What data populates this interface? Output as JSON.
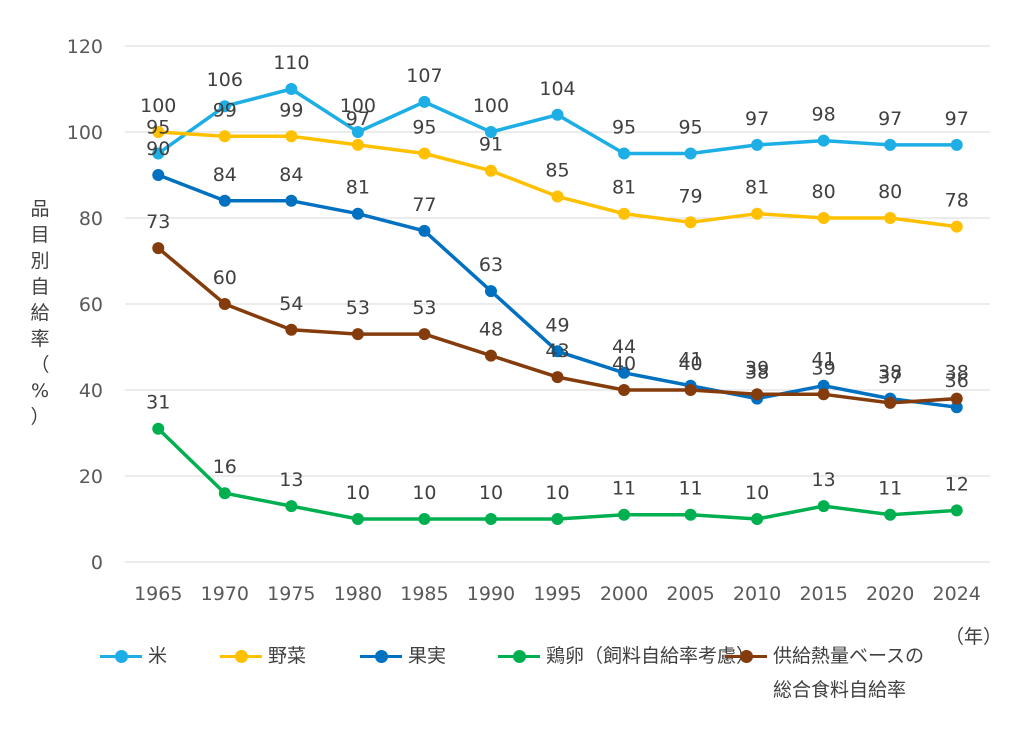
{
  "chart_data": {
    "type": "line",
    "categories": [
      "1965",
      "1970",
      "1975",
      "1980",
      "1985",
      "1990",
      "1995",
      "2000",
      "2005",
      "2010",
      "2015",
      "2020",
      "2024"
    ],
    "series": [
      {
        "name": "米",
        "color": "#1CAEE4",
        "values": [
          95,
          106,
          110,
          100,
          107,
          100,
          104,
          95,
          95,
          97,
          98,
          97,
          97
        ]
      },
      {
        "name": "野菜",
        "color": "#FFC000",
        "values": [
          100,
          99,
          99,
          97,
          95,
          91,
          85,
          81,
          79,
          81,
          80,
          80,
          78
        ]
      },
      {
        "name": "果実",
        "color": "#0070C0",
        "values": [
          90,
          84,
          84,
          81,
          77,
          63,
          49,
          44,
          41,
          38,
          41,
          38,
          36
        ]
      },
      {
        "name": "鶏卵（飼料自給率考慮）",
        "color": "#00B050",
        "values": [
          31,
          16,
          13,
          10,
          10,
          10,
          10,
          11,
          11,
          10,
          13,
          11,
          12
        ]
      },
      {
        "name": "供給熱量ベースの総合食料自給率",
        "lines": [
          "供給熱量ベースの",
          "総合食料自給率"
        ],
        "color": "#843C0C",
        "values": [
          73,
          60,
          54,
          53,
          53,
          48,
          43,
          40,
          40,
          39,
          39,
          37,
          38
        ]
      }
    ],
    "yticks": [
      "0",
      "20",
      "40",
      "60",
      "80",
      "100",
      "120"
    ],
    "ylim": [
      0,
      120
    ],
    "ylabel": "品目別自給率（%）",
    "ylabel_chars": [
      "品",
      "目",
      "別",
      "自",
      "給",
      "率",
      "（",
      "%",
      "）"
    ],
    "xlabel": "（年）",
    "grid": true,
    "legend": "bottom"
  }
}
